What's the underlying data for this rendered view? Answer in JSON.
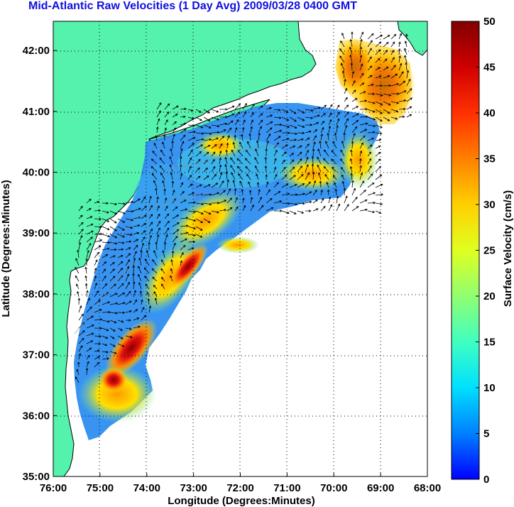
{
  "title": "Mid-Atlantic Raw Velocities (1 Day Avg) 2009/03/28 0400 GMT",
  "x_axis": {
    "label": "Longitude (Degrees:Minutes)",
    "ticks": [
      "76:00",
      "75:00",
      "74:00",
      "73:00",
      "72:00",
      "71:00",
      "70:00",
      "69:00",
      "68:00"
    ]
  },
  "y_axis": {
    "label": "Latitude (Degrees:Minutes)",
    "ticks": [
      "35:00",
      "36:00",
      "37:00",
      "38:00",
      "39:00",
      "40:00",
      "41:00",
      "42:00"
    ]
  },
  "colorbar": {
    "label": "Surface Velocity (cm/s)",
    "ticks": [
      "0",
      "5",
      "10",
      "15",
      "20",
      "25",
      "30",
      "35",
      "40",
      "45",
      "50"
    ],
    "range": [
      0,
      50
    ]
  },
  "colors": {
    "land": "#55f2ad",
    "title": "#1010e0",
    "low_speed": "#2c7bf6",
    "high_speed": "#8b0000"
  }
}
